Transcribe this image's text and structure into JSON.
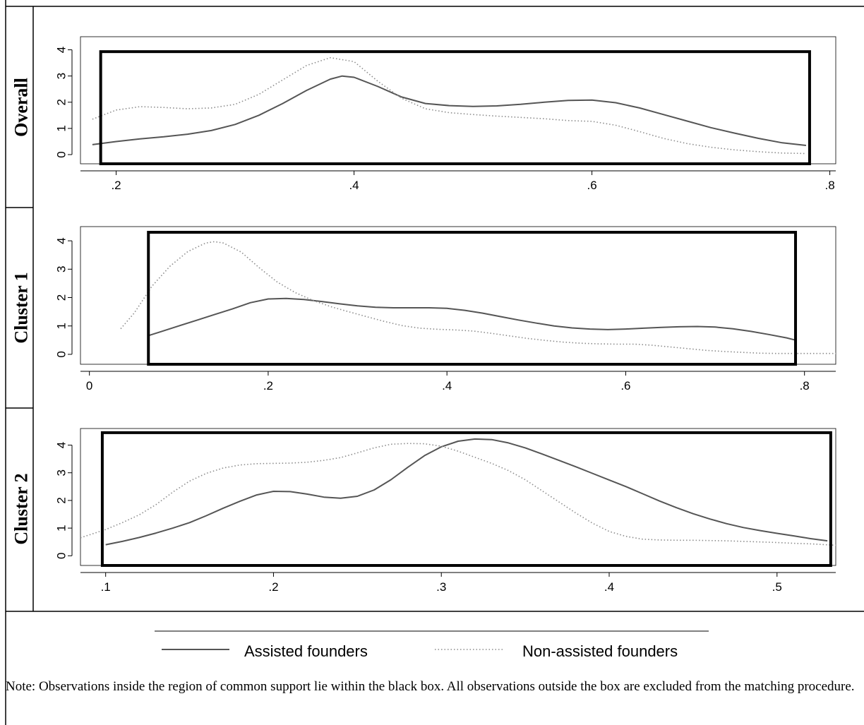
{
  "legend": {
    "assisted_label": "Assisted founders",
    "non_assisted_label": "Non-assisted founders"
  },
  "note": "Note: Observations inside the region of common support lie within the black box. All observations outside the box are excluded from the matching procedure.",
  "colors": {
    "assisted": "#555555",
    "non_assisted": "#8c8c8c",
    "box": "#000000",
    "frame": "#000000"
  },
  "chart_data": [
    {
      "type": "line",
      "row_label": "Overall",
      "xticks": [
        0.2,
        0.4,
        0.6,
        0.8
      ],
      "xtick_labels": [
        ".2",
        ".4",
        ".6",
        ".8"
      ],
      "yticks": [
        0,
        1,
        2,
        3,
        4
      ],
      "yticks_labels": [
        "0",
        "1",
        "2",
        "3",
        "4"
      ],
      "xlim": [
        0.17,
        0.805
      ],
      "ylim": [
        -0.35,
        4.5
      ],
      "common_support_box": {
        "x": [
          0.187,
          0.783
        ],
        "y": [
          -0.35,
          3.93
        ]
      },
      "series": [
        {
          "name": "Assisted founders",
          "style": "solid",
          "x": [
            0.18,
            0.2,
            0.22,
            0.24,
            0.26,
            0.28,
            0.3,
            0.32,
            0.34,
            0.36,
            0.38,
            0.39,
            0.4,
            0.42,
            0.44,
            0.46,
            0.48,
            0.5,
            0.52,
            0.54,
            0.56,
            0.58,
            0.6,
            0.62,
            0.64,
            0.66,
            0.68,
            0.7,
            0.72,
            0.74,
            0.76,
            0.78
          ],
          "y": [
            0.38,
            0.5,
            0.6,
            0.68,
            0.78,
            0.92,
            1.15,
            1.5,
            1.95,
            2.45,
            2.88,
            3.0,
            2.95,
            2.6,
            2.2,
            1.95,
            1.87,
            1.84,
            1.86,
            1.92,
            2.0,
            2.07,
            2.08,
            1.98,
            1.78,
            1.53,
            1.28,
            1.03,
            0.82,
            0.62,
            0.45,
            0.35
          ]
        },
        {
          "name": "Non-assisted founders",
          "style": "dotted",
          "x": [
            0.18,
            0.2,
            0.22,
            0.24,
            0.26,
            0.28,
            0.3,
            0.32,
            0.34,
            0.36,
            0.38,
            0.4,
            0.42,
            0.44,
            0.46,
            0.48,
            0.5,
            0.52,
            0.54,
            0.56,
            0.58,
            0.6,
            0.62,
            0.64,
            0.66,
            0.68,
            0.7,
            0.72,
            0.74,
            0.76,
            0.78
          ],
          "y": [
            1.35,
            1.7,
            1.83,
            1.8,
            1.75,
            1.78,
            1.92,
            2.3,
            2.85,
            3.4,
            3.7,
            3.55,
            2.8,
            2.15,
            1.75,
            1.6,
            1.53,
            1.47,
            1.42,
            1.37,
            1.3,
            1.27,
            1.12,
            0.88,
            0.62,
            0.42,
            0.28,
            0.18,
            0.11,
            0.06,
            0.04
          ]
        }
      ]
    },
    {
      "type": "line",
      "row_label": "Cluster 1",
      "xticks": [
        0,
        0.2,
        0.4,
        0.6,
        0.8
      ],
      "xtick_labels": [
        "0",
        ".2",
        ".4",
        ".6",
        ".8"
      ],
      "yticks": [
        0,
        1,
        2,
        3,
        4
      ],
      "yticks_labels": [
        "0",
        "1",
        "2",
        "3",
        "4"
      ],
      "xlim": [
        -0.01,
        0.835
      ],
      "ylim": [
        -0.35,
        4.5
      ],
      "common_support_box": {
        "x": [
          0.066,
          0.79
        ],
        "y": [
          -0.35,
          4.3
        ]
      },
      "series": [
        {
          "name": "Assisted founders",
          "style": "solid",
          "x": [
            0.066,
            0.08,
            0.1,
            0.12,
            0.14,
            0.16,
            0.18,
            0.2,
            0.22,
            0.24,
            0.26,
            0.28,
            0.3,
            0.32,
            0.34,
            0.36,
            0.38,
            0.4,
            0.42,
            0.44,
            0.46,
            0.48,
            0.5,
            0.52,
            0.54,
            0.56,
            0.58,
            0.6,
            0.62,
            0.64,
            0.66,
            0.68,
            0.7,
            0.72,
            0.74,
            0.76,
            0.78,
            0.79
          ],
          "y": [
            0.66,
            0.8,
            1.0,
            1.2,
            1.4,
            1.6,
            1.82,
            1.95,
            1.97,
            1.93,
            1.86,
            1.78,
            1.71,
            1.66,
            1.64,
            1.64,
            1.64,
            1.62,
            1.55,
            1.45,
            1.33,
            1.21,
            1.1,
            1.0,
            0.93,
            0.89,
            0.87,
            0.89,
            0.92,
            0.95,
            0.97,
            0.98,
            0.96,
            0.9,
            0.81,
            0.7,
            0.58,
            0.5
          ]
        },
        {
          "name": "Non-assisted founders",
          "style": "dotted",
          "x": [
            0.035,
            0.05,
            0.07,
            0.09,
            0.11,
            0.13,
            0.14,
            0.15,
            0.17,
            0.19,
            0.21,
            0.23,
            0.25,
            0.27,
            0.29,
            0.31,
            0.33,
            0.35,
            0.37,
            0.39,
            0.41,
            0.43,
            0.45,
            0.47,
            0.49,
            0.51,
            0.53,
            0.55,
            0.57,
            0.59,
            0.61,
            0.63,
            0.65,
            0.67,
            0.69,
            0.71,
            0.73,
            0.75,
            0.77,
            0.79,
            0.81,
            0.835
          ],
          "y": [
            0.9,
            1.45,
            2.4,
            3.1,
            3.62,
            3.92,
            3.97,
            3.92,
            3.6,
            3.05,
            2.55,
            2.18,
            1.9,
            1.68,
            1.5,
            1.33,
            1.16,
            1.01,
            0.92,
            0.88,
            0.86,
            0.82,
            0.74,
            0.65,
            0.56,
            0.49,
            0.43,
            0.39,
            0.37,
            0.36,
            0.36,
            0.32,
            0.26,
            0.2,
            0.14,
            0.1,
            0.07,
            0.04,
            0.03,
            0.03,
            0.03,
            0.03
          ]
        }
      ]
    },
    {
      "type": "line",
      "row_label": "Cluster 2",
      "xticks": [
        0.1,
        0.2,
        0.3,
        0.4,
        0.5
      ],
      "xtick_labels": [
        ".1",
        ".2",
        ".3",
        ".4",
        ".5"
      ],
      "yticks": [
        0,
        1,
        2,
        3,
        4
      ],
      "yticks_labels": [
        "0",
        "1",
        "2",
        "3",
        "4"
      ],
      "xlim": [
        0.085,
        0.535
      ],
      "ylim": [
        -0.35,
        4.6
      ],
      "common_support_box": {
        "x": [
          0.098,
          0.532
        ],
        "y": [
          -0.35,
          4.45
        ]
      },
      "series": [
        {
          "name": "Assisted founders",
          "style": "solid",
          "x": [
            0.1,
            0.11,
            0.12,
            0.13,
            0.14,
            0.15,
            0.16,
            0.17,
            0.18,
            0.19,
            0.2,
            0.21,
            0.22,
            0.23,
            0.24,
            0.25,
            0.26,
            0.27,
            0.28,
            0.29,
            0.3,
            0.31,
            0.32,
            0.33,
            0.34,
            0.35,
            0.36,
            0.37,
            0.38,
            0.39,
            0.4,
            0.41,
            0.42,
            0.43,
            0.44,
            0.45,
            0.46,
            0.47,
            0.48,
            0.49,
            0.5,
            0.51,
            0.52,
            0.53
          ],
          "y": [
            0.4,
            0.52,
            0.66,
            0.82,
            1.0,
            1.2,
            1.45,
            1.72,
            1.97,
            2.2,
            2.33,
            2.32,
            2.23,
            2.12,
            2.08,
            2.15,
            2.38,
            2.75,
            3.2,
            3.62,
            3.94,
            4.14,
            4.22,
            4.2,
            4.08,
            3.9,
            3.68,
            3.45,
            3.22,
            2.98,
            2.74,
            2.5,
            2.24,
            1.98,
            1.74,
            1.52,
            1.33,
            1.16,
            1.02,
            0.91,
            0.81,
            0.72,
            0.62,
            0.54
          ]
        },
        {
          "name": "Non-assisted founders",
          "style": "dotted",
          "x": [
            0.085,
            0.1,
            0.11,
            0.12,
            0.13,
            0.14,
            0.15,
            0.16,
            0.17,
            0.18,
            0.19,
            0.2,
            0.21,
            0.22,
            0.23,
            0.24,
            0.25,
            0.26,
            0.27,
            0.28,
            0.29,
            0.3,
            0.31,
            0.32,
            0.33,
            0.34,
            0.35,
            0.36,
            0.37,
            0.38,
            0.39,
            0.4,
            0.41,
            0.42,
            0.43,
            0.44,
            0.45,
            0.46,
            0.47,
            0.48,
            0.49,
            0.5,
            0.51,
            0.52,
            0.535
          ],
          "y": [
            0.65,
            0.95,
            1.2,
            1.48,
            1.85,
            2.3,
            2.7,
            2.98,
            3.17,
            3.28,
            3.33,
            3.34,
            3.35,
            3.38,
            3.45,
            3.55,
            3.72,
            3.9,
            4.03,
            4.06,
            4.05,
            3.96,
            3.78,
            3.56,
            3.34,
            3.08,
            2.75,
            2.35,
            1.95,
            1.55,
            1.18,
            0.88,
            0.7,
            0.6,
            0.57,
            0.56,
            0.56,
            0.55,
            0.54,
            0.52,
            0.5,
            0.48,
            0.45,
            0.43,
            0.38
          ]
        }
      ]
    }
  ]
}
